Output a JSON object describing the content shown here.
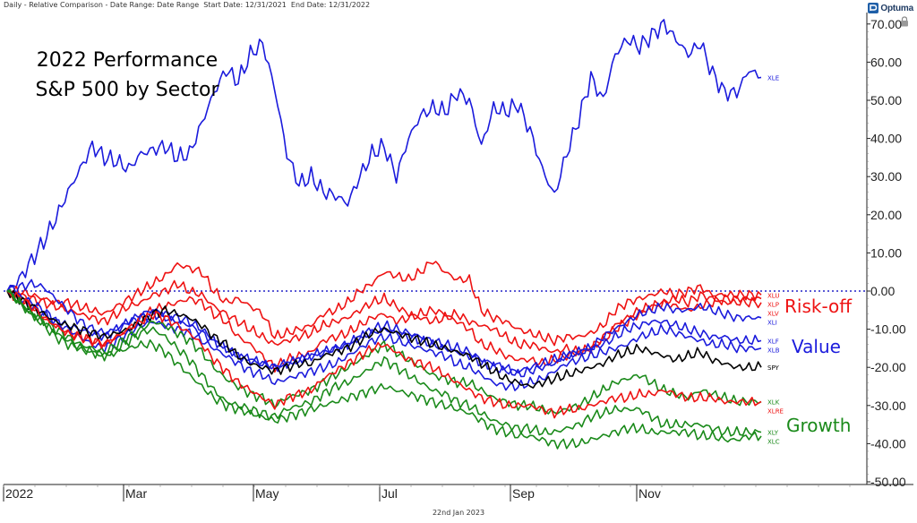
{
  "header": {
    "info": "Daily - Relative Comparison - Date Range: Date Range  Start Date: 12/31/2021  End Date: 12/31/2022",
    "brand": "Optuma"
  },
  "footer": {
    "date": "22nd Jan 2023"
  },
  "colors": {
    "blue": "#1b1bdc",
    "red": "#ee1212",
    "green": "#1a8a1a",
    "black": "#000000",
    "zero_line": "#2323c8",
    "frame": "#222222",
    "grid_tick": "#888888"
  },
  "chart_data": {
    "type": "line",
    "title": "2022 Performance",
    "subtitle": "S&P 500 by Sector",
    "xlabel": "",
    "ylabel": "",
    "x_tick_labels": [
      "2022",
      "Mar",
      "May",
      "Jul",
      "Sep",
      "Nov"
    ],
    "y_tick_labels": [
      "70.00",
      "60.00",
      "50.00",
      "40.00",
      "30.00",
      "20.00",
      "10.00",
      "0.00",
      "-10.00",
      "-20.00",
      "-30.00",
      "-40.00",
      "-50.00"
    ],
    "ylim": [
      -50,
      72
    ],
    "grid": false,
    "y_axis_position": "right",
    "group_labels": [
      {
        "text": "Risk-off",
        "color": "red"
      },
      {
        "text": "Value",
        "color": "blue"
      },
      {
        "text": "Growth",
        "color": "green"
      }
    ],
    "series": [
      {
        "name": "XLE",
        "color": "blue",
        "values": [
          0,
          3,
          8,
          13,
          19,
          26,
          32,
          38,
          35,
          34,
          32,
          36,
          37,
          38,
          35,
          36,
          44,
          52,
          58,
          55,
          62,
          65,
          53,
          36,
          28,
          30,
          26,
          25,
          23,
          30,
          36,
          38,
          30,
          40,
          46,
          48,
          47,
          52,
          50,
          38,
          48,
          47,
          49,
          42,
          32,
          25,
          36,
          45,
          56,
          50,
          62,
          66,
          64,
          67,
          70,
          66,
          62,
          65,
          57,
          52,
          52,
          58,
          56
        ]
      },
      {
        "name": "XLU",
        "color": "red",
        "values": [
          0,
          0,
          -1,
          -2,
          -3,
          -3,
          -4,
          -5,
          -6,
          -4,
          -2,
          0,
          2,
          4,
          7,
          6,
          5,
          0,
          -3,
          -2,
          -4,
          -6,
          -12,
          -11,
          -10,
          -9,
          -6,
          -5,
          -3,
          0,
          2,
          5,
          4,
          3,
          5,
          8,
          5,
          3,
          3,
          -5,
          -7,
          -8,
          -10,
          -11,
          -12,
          -13,
          -12,
          -12,
          -11,
          -9,
          -5,
          -3,
          -2,
          -1,
          0,
          -1,
          0,
          1,
          -1,
          -1,
          -1,
          -1,
          -1
        ]
      },
      {
        "name": "XLP",
        "color": "red",
        "values": [
          0,
          -1,
          -2,
          -3,
          -4,
          -5,
          -6,
          -7,
          -8,
          -6,
          -4,
          -3,
          -1,
          0,
          2,
          0,
          -1,
          -4,
          -6,
          -8,
          -10,
          -12,
          -14,
          -13,
          -12,
          -11,
          -9,
          -8,
          -7,
          -5,
          -3,
          -2,
          -4,
          -6,
          -7,
          -8,
          -7,
          -6,
          -8,
          -9,
          -10,
          -12,
          -14,
          -14,
          -15,
          -16,
          -15,
          -16,
          -15,
          -12,
          -9,
          -7,
          -5,
          -4,
          -3,
          -4,
          -5,
          -4,
          -3,
          -2,
          -2,
          -2,
          -2
        ]
      },
      {
        "name": "XLV",
        "color": "red",
        "values": [
          0,
          -2,
          -4,
          -7,
          -9,
          -11,
          -12,
          -13,
          -14,
          -12,
          -10,
          -7,
          -5,
          -4,
          -3,
          -2,
          -3,
          -6,
          -8,
          -12,
          -14,
          -17,
          -20,
          -18,
          -17,
          -16,
          -13,
          -12,
          -11,
          -9,
          -7,
          -6,
          -8,
          -7,
          -6,
          -5,
          -6,
          -8,
          -10,
          -14,
          -15,
          -17,
          -18,
          -18,
          -19,
          -18,
          -17,
          -16,
          -15,
          -13,
          -10,
          -8,
          -6,
          -4,
          -3,
          -2,
          -3,
          -1,
          -2,
          -3,
          -3,
          -3,
          -3
        ]
      },
      {
        "name": "XLI",
        "color": "blue",
        "values": [
          0,
          -2,
          -4,
          -6,
          -8,
          -9,
          -10,
          -11,
          -12,
          -10,
          -8,
          -6,
          -5,
          -6,
          -7,
          -8,
          -10,
          -13,
          -15,
          -17,
          -18,
          -19,
          -20,
          -19,
          -18,
          -17,
          -16,
          -15,
          -14,
          -12,
          -10,
          -9,
          -10,
          -11,
          -12,
          -13,
          -14,
          -15,
          -16,
          -18,
          -19,
          -20,
          -22,
          -21,
          -20,
          -19,
          -17,
          -16,
          -15,
          -12,
          -10,
          -8,
          -6,
          -5,
          -4,
          -5,
          -5,
          -4,
          -5,
          -6,
          -7,
          -7,
          -7
        ]
      },
      {
        "name": "XLF",
        "color": "blue",
        "values": [
          0,
          1,
          2,
          1,
          -2,
          -5,
          -8,
          -10,
          -11,
          -10,
          -8,
          -7,
          -6,
          -7,
          -8,
          -9,
          -11,
          -13,
          -15,
          -17,
          -18,
          -19,
          -20,
          -19,
          -18,
          -17,
          -16,
          -15,
          -14,
          -12,
          -11,
          -10,
          -11,
          -12,
          -13,
          -14,
          -15,
          -16,
          -17,
          -19,
          -20,
          -21,
          -21,
          -20,
          -19,
          -18,
          -17,
          -16,
          -15,
          -14,
          -12,
          -10,
          -9,
          -8,
          -8,
          -9,
          -10,
          -11,
          -12,
          -12,
          -13,
          -13,
          -13
        ]
      },
      {
        "name": "XLB",
        "color": "blue",
        "values": [
          0,
          -1,
          -3,
          -5,
          -8,
          -10,
          -12,
          -14,
          -15,
          -13,
          -11,
          -9,
          -8,
          -9,
          -10,
          -11,
          -13,
          -15,
          -17,
          -19,
          -21,
          -22,
          -24,
          -23,
          -22,
          -21,
          -20,
          -19,
          -17,
          -15,
          -13,
          -12,
          -13,
          -14,
          -15,
          -16,
          -17,
          -19,
          -20,
          -22,
          -24,
          -25,
          -25,
          -24,
          -23,
          -21,
          -19,
          -18,
          -17,
          -16,
          -15,
          -14,
          -12,
          -11,
          -10,
          -11,
          -12,
          -13,
          -14,
          -14,
          -15,
          -15,
          -15
        ]
      },
      {
        "name": "SPY",
        "color": "black",
        "values": [
          0,
          -2,
          -4,
          -6,
          -8,
          -9,
          -10,
          -11,
          -12,
          -11,
          -10,
          -8,
          -6,
          -5,
          -6,
          -7,
          -9,
          -12,
          -14,
          -17,
          -19,
          -20,
          -21,
          -20,
          -19,
          -19,
          -17,
          -16,
          -15,
          -13,
          -11,
          -10,
          -11,
          -12,
          -13,
          -14,
          -15,
          -16,
          -17,
          -19,
          -21,
          -23,
          -24,
          -25,
          -24,
          -23,
          -22,
          -21,
          -20,
          -19,
          -17,
          -16,
          -15,
          -16,
          -17,
          -18,
          -17,
          -16,
          -18,
          -19,
          -20,
          -20,
          -20
        ]
      },
      {
        "name": "XLK",
        "color": "green",
        "values": [
          0,
          -3,
          -6,
          -8,
          -10,
          -12,
          -14,
          -15,
          -16,
          -14,
          -12,
          -10,
          -8,
          -9,
          -11,
          -13,
          -16,
          -20,
          -23,
          -25,
          -27,
          -28,
          -30,
          -28,
          -27,
          -26,
          -24,
          -22,
          -20,
          -18,
          -16,
          -14,
          -16,
          -18,
          -20,
          -22,
          -23,
          -24,
          -24,
          -26,
          -28,
          -29,
          -30,
          -30,
          -31,
          -32,
          -31,
          -30,
          -28,
          -26,
          -24,
          -23,
          -22,
          -24,
          -26,
          -27,
          -28,
          -26,
          -27,
          -28,
          -29,
          -29,
          -29
        ]
      },
      {
        "name": "XLRE",
        "color": "red",
        "values": [
          0,
          -2,
          -4,
          -7,
          -9,
          -11,
          -12,
          -13,
          -14,
          -12,
          -10,
          -8,
          -6,
          -7,
          -9,
          -11,
          -14,
          -18,
          -21,
          -24,
          -26,
          -28,
          -30,
          -28,
          -27,
          -26,
          -23,
          -21,
          -19,
          -17,
          -15,
          -14,
          -16,
          -18,
          -19,
          -20,
          -22,
          -24,
          -26,
          -28,
          -29,
          -30,
          -30,
          -30,
          -31,
          -32,
          -31,
          -31,
          -30,
          -29,
          -28,
          -28,
          -27,
          -27,
          -26,
          -27,
          -28,
          -28,
          -28,
          -29,
          -29,
          -29,
          -29
        ]
      },
      {
        "name": "XLY",
        "color": "green",
        "values": [
          0,
          -3,
          -6,
          -9,
          -12,
          -14,
          -15,
          -16,
          -17,
          -15,
          -13,
          -11,
          -10,
          -12,
          -15,
          -18,
          -22,
          -26,
          -29,
          -30,
          -31,
          -32,
          -33,
          -31,
          -30,
          -29,
          -27,
          -25,
          -24,
          -22,
          -20,
          -18,
          -20,
          -22,
          -24,
          -26,
          -27,
          -29,
          -30,
          -32,
          -34,
          -35,
          -36,
          -36,
          -37,
          -37,
          -36,
          -35,
          -33,
          -32,
          -31,
          -31,
          -31,
          -33,
          -35,
          -35,
          -35,
          -35,
          -36,
          -37,
          -37,
          -37,
          -37
        ]
      },
      {
        "name": "XLC",
        "color": "green",
        "values": [
          0,
          -3,
          -6,
          -8,
          -11,
          -13,
          -15,
          -16,
          -17,
          -16,
          -15,
          -14,
          -14,
          -16,
          -19,
          -22,
          -25,
          -28,
          -30,
          -31,
          -32,
          -33,
          -34,
          -33,
          -32,
          -31,
          -30,
          -29,
          -28,
          -27,
          -26,
          -25,
          -26,
          -27,
          -28,
          -29,
          -30,
          -31,
          -32,
          -34,
          -36,
          -37,
          -38,
          -38,
          -39,
          -40,
          -40,
          -40,
          -39,
          -38,
          -37,
          -36,
          -36,
          -37,
          -37,
          -37,
          -37,
          -38,
          -38,
          -39,
          -39,
          -38,
          -38
        ]
      }
    ]
  }
}
